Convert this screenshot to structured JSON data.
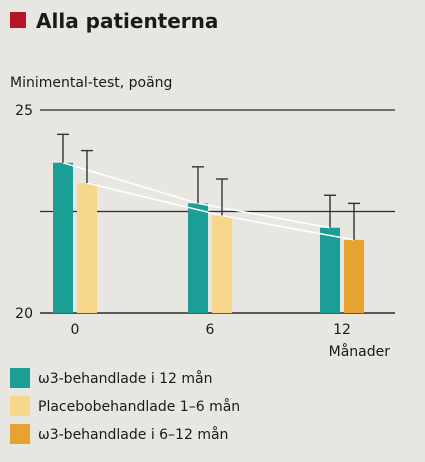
{
  "chart_data": {
    "type": "bar",
    "title": "Alla patienterna",
    "ylabel": "Minimental-test, poäng",
    "xlabel": "Månader",
    "categories": [
      "0",
      "6",
      "12"
    ],
    "ylim": [
      20,
      25
    ],
    "yticks": [
      20,
      25
    ],
    "gridlines": [
      22.5,
      25
    ],
    "series": [
      {
        "name": "ω3-behandlade i 12 mån",
        "color": "#1a9e95",
        "values": [
          23.7,
          22.7,
          22.1
        ],
        "errors": [
          0.7,
          0.9,
          0.8
        ]
      },
      {
        "name": "Placebobehandlade 1–6 mån",
        "color": "#f7d78b",
        "values": [
          23.2,
          22.4,
          null
        ],
        "errors": [
          0.8,
          0.9,
          null
        ]
      },
      {
        "name": "ω3-behandlade i 6–12 mån",
        "color": "#e6a330",
        "values": [
          null,
          null,
          21.8
        ],
        "errors": [
          null,
          null,
          0.9
        ]
      }
    ],
    "title_marker_color": "#b5152b"
  }
}
